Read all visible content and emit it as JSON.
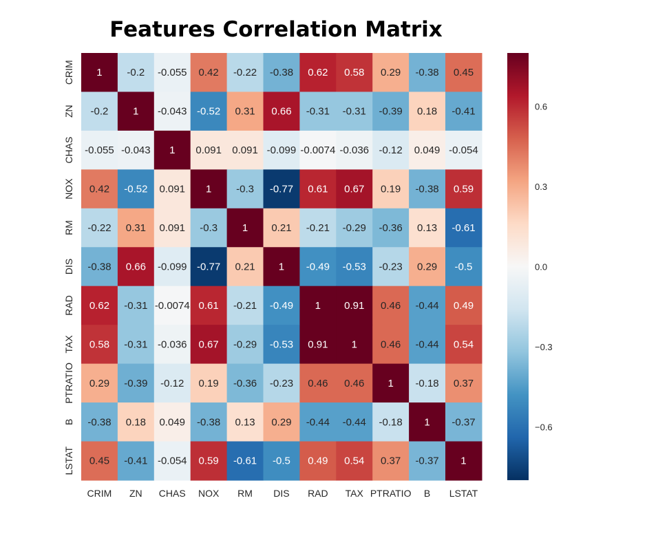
{
  "chart_data": {
    "type": "heatmap",
    "title": "Features Correlation Matrix",
    "xlabel": "",
    "ylabel": "",
    "x_categories": [
      "CRIM",
      "ZN",
      "CHAS",
      "NOX",
      "RM",
      "DIS",
      "RAD",
      "TAX",
      "PTRATIO",
      "B",
      "LSTAT"
    ],
    "y_categories": [
      "CRIM",
      "ZN",
      "CHAS",
      "NOX",
      "RM",
      "DIS",
      "RAD",
      "TAX",
      "PTRATIO",
      "B",
      "LSTAT"
    ],
    "values": [
      [
        1,
        -0.2,
        -0.055,
        0.42,
        -0.22,
        -0.38,
        0.62,
        0.58,
        0.29,
        -0.38,
        0.45
      ],
      [
        -0.2,
        1,
        -0.043,
        -0.52,
        0.31,
        0.66,
        -0.31,
        -0.31,
        -0.39,
        0.18,
        -0.41
      ],
      [
        -0.055,
        -0.043,
        1,
        0.091,
        0.091,
        -0.099,
        -0.0074,
        -0.036,
        -0.12,
        0.049,
        -0.054
      ],
      [
        0.42,
        -0.52,
        0.091,
        1,
        -0.3,
        -0.77,
        0.61,
        0.67,
        0.19,
        -0.38,
        0.59
      ],
      [
        -0.22,
        0.31,
        0.091,
        -0.3,
        1,
        0.21,
        -0.21,
        -0.29,
        -0.36,
        0.13,
        -0.61
      ],
      [
        -0.38,
        0.66,
        -0.099,
        -0.77,
        0.21,
        1,
        -0.49,
        -0.53,
        -0.23,
        0.29,
        -0.5
      ],
      [
        0.62,
        -0.31,
        -0.0074,
        0.61,
        -0.21,
        -0.49,
        1,
        0.91,
        0.46,
        -0.44,
        0.49
      ],
      [
        0.58,
        -0.31,
        -0.036,
        0.67,
        -0.29,
        -0.53,
        0.91,
        1,
        0.46,
        -0.44,
        0.54
      ],
      [
        0.29,
        -0.39,
        -0.12,
        0.19,
        -0.36,
        -0.23,
        0.46,
        0.46,
        1,
        -0.18,
        0.37
      ],
      [
        -0.38,
        0.18,
        0.049,
        -0.38,
        0.13,
        0.29,
        -0.44,
        -0.44,
        -0.18,
        1,
        -0.37
      ],
      [
        0.45,
        -0.41,
        -0.054,
        0.59,
        -0.61,
        -0.5,
        0.49,
        0.54,
        0.37,
        -0.37,
        1
      ]
    ],
    "color_range": [
      -0.8,
      0.8
    ],
    "colormap": "RdBu_r",
    "colormap_stops": [
      "#053061",
      "#2166ac",
      "#4393c3",
      "#92c5de",
      "#d1e5f0",
      "#f7f7f7",
      "#fddbc7",
      "#f4a582",
      "#d6604d",
      "#b2182b",
      "#67001f"
    ],
    "colorbar_ticks": [
      0.6,
      0.3,
      0.0,
      -0.3,
      -0.6
    ],
    "colorbar_tick_labels": [
      "0.6",
      "0.3",
      "0.0",
      "−0.3",
      "−0.6"
    ],
    "annotations": true,
    "grid": false
  }
}
